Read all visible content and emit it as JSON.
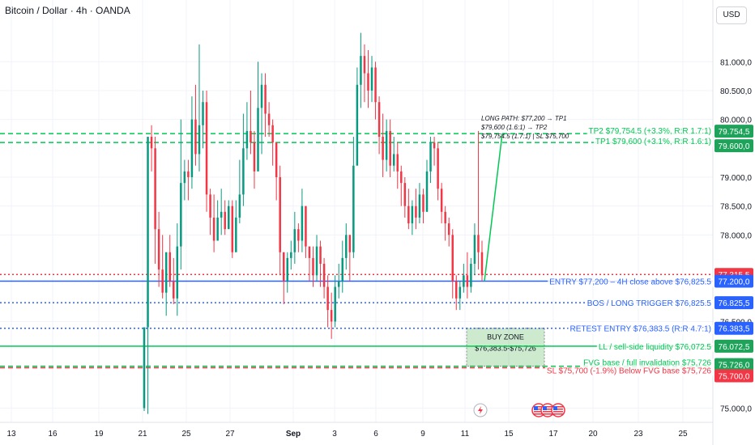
{
  "title": "Bitcoin / Dollar · 4h · OANDA",
  "currency_button": "USD",
  "colors": {
    "up": "#089981",
    "down": "#f23645",
    "blue": "#2962ff",
    "green": "#00c853",
    "red": "#f23645",
    "grid": "#f0f3fa",
    "text": "#131722"
  },
  "icons": [
    "lightning-event-icon",
    "us-flag-event-icon",
    "us-flag-event-icon",
    "us-flag-event-icon"
  ],
  "chart_data": {
    "type": "candlestick",
    "title": "Bitcoin / Dollar · 4h · OANDA",
    "ylim": [
      74900,
      81500
    ],
    "y_ticks": [
      "81.000,0",
      "80.500,0",
      "80.000,0",
      "79.000,0",
      "78.500,0",
      "78.000,0",
      "76.500,0",
      "75.000,0"
    ],
    "y_tick_values": [
      81000,
      80500,
      80000,
      79000,
      78500,
      78000,
      76500,
      75000
    ],
    "x_ticks": [
      "13",
      "16",
      "19",
      "21",
      "25",
      "27",
      "Sep",
      "3",
      "6",
      "9",
      "11",
      "15",
      "17",
      "20",
      "23",
      "25"
    ],
    "candles_note": "estimated from chart",
    "candles": [
      [
        75000,
        76400,
        75500,
        74950
      ],
      [
        76400,
        79700,
        76600,
        74900
      ],
      [
        79700,
        79500,
        79900,
        79100
      ],
      [
        79500,
        78100,
        79700,
        77500
      ],
      [
        78100,
        77400,
        78400,
        77100
      ],
      [
        77400,
        77000,
        78000,
        76900
      ],
      [
        77000,
        77700,
        77700,
        76600
      ],
      [
        77700,
        77200,
        78000,
        77100
      ],
      [
        77200,
        76900,
        77600,
        76800
      ],
      [
        76900,
        77800,
        78200,
        76600
      ],
      [
        77800,
        78900,
        80000,
        77400
      ],
      [
        78900,
        79100,
        79300,
        78600
      ],
      [
        79100,
        79000,
        79300,
        78600
      ],
      [
        79000,
        80000,
        80400,
        78800
      ],
      [
        80000,
        79400,
        80600,
        79200
      ],
      [
        79400,
        79900,
        81300,
        79100
      ],
      [
        79900,
        80300,
        80500,
        79500
      ],
      [
        80300,
        78700,
        80500,
        78400
      ],
      [
        78700,
        78300,
        78800,
        78000
      ],
      [
        78300,
        77900,
        78700,
        77700
      ],
      [
        77900,
        78300,
        78600,
        78000
      ],
      [
        78300,
        78400,
        78800,
        78000
      ],
      [
        78400,
        78100,
        78600,
        78000
      ],
      [
        78100,
        78500,
        78600,
        78200
      ],
      [
        78500,
        77700,
        78600,
        77600
      ],
      [
        77700,
        78300,
        78600,
        78000
      ],
      [
        78300,
        78700,
        79300,
        78200
      ],
      [
        78700,
        79500,
        80100,
        78500
      ],
      [
        79500,
        79800,
        80300,
        79300
      ],
      [
        79800,
        79600,
        80500,
        79400
      ],
      [
        79600,
        79100,
        79800,
        78800
      ],
      [
        79100,
        80200,
        81000,
        79900
      ],
      [
        80200,
        80600,
        80800,
        79400
      ],
      [
        80600,
        80100,
        80800,
        79700
      ],
      [
        80100,
        79900,
        80300,
        79700
      ],
      [
        79900,
        79600,
        80000,
        79200
      ],
      [
        79600,
        79000,
        79600,
        78600
      ],
      [
        79000,
        77700,
        79200,
        77300
      ],
      [
        77700,
        77200,
        77700,
        76800
      ],
      [
        77200,
        77600,
        77700,
        77000
      ],
      [
        77600,
        77700,
        77900,
        77400
      ],
      [
        77700,
        78100,
        78400,
        77500
      ],
      [
        78100,
        77900,
        78200,
        77700
      ],
      [
        77900,
        78500,
        78800,
        77700
      ],
      [
        78500,
        77800,
        78500,
        77600
      ],
      [
        77800,
        77600,
        77800,
        77200
      ],
      [
        77600,
        77300,
        77800,
        77100
      ],
      [
        77300,
        77800,
        78000,
        77200
      ],
      [
        77800,
        77500,
        77900,
        77100
      ],
      [
        77500,
        77100,
        77600,
        76900
      ],
      [
        77100,
        76700,
        77300,
        76400
      ],
      [
        76700,
        76500,
        77000,
        76200
      ],
      [
        76500,
        77100,
        77300,
        76400
      ],
      [
        77100,
        77200,
        77500,
        76900
      ],
      [
        77200,
        77600,
        77900,
        77000
      ],
      [
        77600,
        78000,
        78200,
        77400
      ],
      [
        78000,
        77700,
        78000,
        77200
      ],
      [
        77700,
        79200,
        79700,
        77600
      ],
      [
        79200,
        80600,
        80900,
        79500
      ],
      [
        80600,
        81100,
        81500,
        80200
      ],
      [
        81100,
        80800,
        81300,
        80300
      ],
      [
        80800,
        80500,
        81200,
        80200
      ],
      [
        80500,
        80900,
        81100,
        80300
      ],
      [
        80900,
        80300,
        81000,
        80000
      ],
      [
        80300,
        79700,
        80400,
        79400
      ],
      [
        79700,
        79300,
        80100,
        79000
      ],
      [
        79300,
        79800,
        80000,
        79100
      ],
      [
        79800,
        79200,
        80000,
        79000
      ],
      [
        79200,
        79400,
        79700,
        79100
      ],
      [
        79400,
        79100,
        79600,
        78800
      ],
      [
        79100,
        78900,
        79200,
        78500
      ],
      [
        78900,
        78500,
        79000,
        78300
      ],
      [
        78500,
        78200,
        78800,
        78100
      ],
      [
        78200,
        78500,
        78600,
        78000
      ],
      [
        78500,
        78300,
        78800,
        78100
      ],
      [
        78300,
        78700,
        78900,
        78200
      ],
      [
        78700,
        78400,
        78800,
        78200
      ],
      [
        78400,
        79100,
        79300,
        78400
      ],
      [
        79100,
        79600,
        79700,
        78900
      ],
      [
        79600,
        79500,
        79700,
        79200
      ],
      [
        79500,
        78800,
        79600,
        78600
      ],
      [
        78800,
        78400,
        78900,
        78200
      ],
      [
        78400,
        78200,
        78500,
        77900
      ],
      [
        78200,
        78000,
        78300,
        77800
      ],
      [
        78000,
        77200,
        78100,
        76900
      ],
      [
        77200,
        76900,
        77300,
        76700
      ],
      [
        76900,
        77100,
        77200,
        76700
      ],
      [
        77100,
        77300,
        77500,
        77000
      ],
      [
        77300,
        77100,
        77700,
        76900
      ],
      [
        77100,
        77500,
        77600,
        77000
      ],
      [
        77500,
        78000,
        78200,
        77300
      ],
      [
        78000,
        77700,
        79800,
        77400
      ],
      [
        77700,
        77300,
        77900,
        77200
      ]
    ],
    "levels": [
      {
        "label": "TP2 $79,754.5 (+3.3%, R:R 1.7:1)",
        "value": 79754.5,
        "tag": "79.754,5",
        "color": "green",
        "style": "dashed"
      },
      {
        "label": "TP1 $79,600 (+3.1%, R:R 1.6:1)",
        "value": 79600,
        "tag": "79.600,0",
        "color": "green",
        "style": "dashed"
      },
      {
        "label": "",
        "value": 77315.5,
        "tag": "77.315,5",
        "color": "red",
        "style": "dotted"
      },
      {
        "label": "ENTRY $77,200 – 4H close above $76,825.5",
        "value": 77200,
        "tag": "77.200,0",
        "color": "blue",
        "style": "solid"
      },
      {
        "label": "BOS / LONG TRIGGER $76,825.5",
        "value": 76825.5,
        "tag": "76.825,5",
        "color": "blue",
        "style": "dotted"
      },
      {
        "label": "RETEST ENTRY $76,383.5 (R:R 4.7:1)",
        "value": 76383.5,
        "tag": "76.383,5",
        "color": "blue",
        "style": "dotted"
      },
      {
        "label": "LL / sell-side liquidity $76,072.5",
        "value": 76072.5,
        "tag": "76.072,5",
        "color": "green",
        "style": "solid"
      },
      {
        "label": "FVG base / full invalidation $75,726",
        "value": 75726,
        "tag": "75.726,0",
        "color": "green",
        "style": "dashed"
      },
      {
        "label": "SL $75,700 (-1.9%) Below FVG base $75,726",
        "value": 75700,
        "tag": "75.700,0",
        "color": "red",
        "style": "dashed"
      }
    ],
    "buy_zone": {
      "title": "BUY ZONE",
      "range": "$76,383.5-$75,726",
      "top": 76383.5,
      "bottom": 75726
    },
    "path_note": [
      "LONG PATH: $77,200 → TP1",
      "$79,600 (1.6:1) → TP2",
      "$79,754.5 (1.7:1) | SL $75,700"
    ]
  }
}
